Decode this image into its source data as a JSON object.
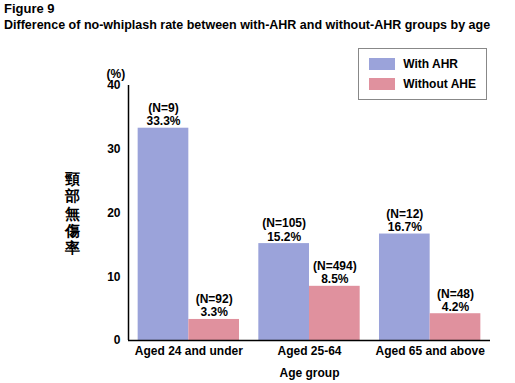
{
  "chart_data": {
    "type": "bar",
    "title": "Figure 9",
    "subtitle": "Difference of no-whiplash rate between with-AHR and without-AHR groups by age",
    "x_label": "Age group",
    "y_label": "頸部無傷率",
    "y_unit_label": "(%)",
    "categories": [
      "Aged 24 and under",
      "Aged 25-64",
      "Aged 65 and above"
    ],
    "series": [
      {
        "name": "With AHR",
        "color": "#9ba3da",
        "values": [
          33.3,
          15.2,
          16.7
        ],
        "value_labels": [
          "33.3%",
          "15.2%",
          "16.7%"
        ],
        "n_labels": [
          "(N=9)",
          "(N=105)",
          "(N=12)"
        ]
      },
      {
        "name": "Without AHE",
        "color": "#e0919e",
        "values": [
          3.3,
          8.5,
          4.2
        ],
        "value_labels": [
          "3.3%",
          "8.5%",
          "4.2%"
        ],
        "n_labels": [
          "(N=92)",
          "(N=494)",
          "(N=48)"
        ]
      }
    ],
    "ylim": [
      0,
      40
    ],
    "yticks": [
      0,
      10,
      20,
      30,
      40
    ],
    "grid": false,
    "legend": "upper right",
    "data_labels": true
  }
}
